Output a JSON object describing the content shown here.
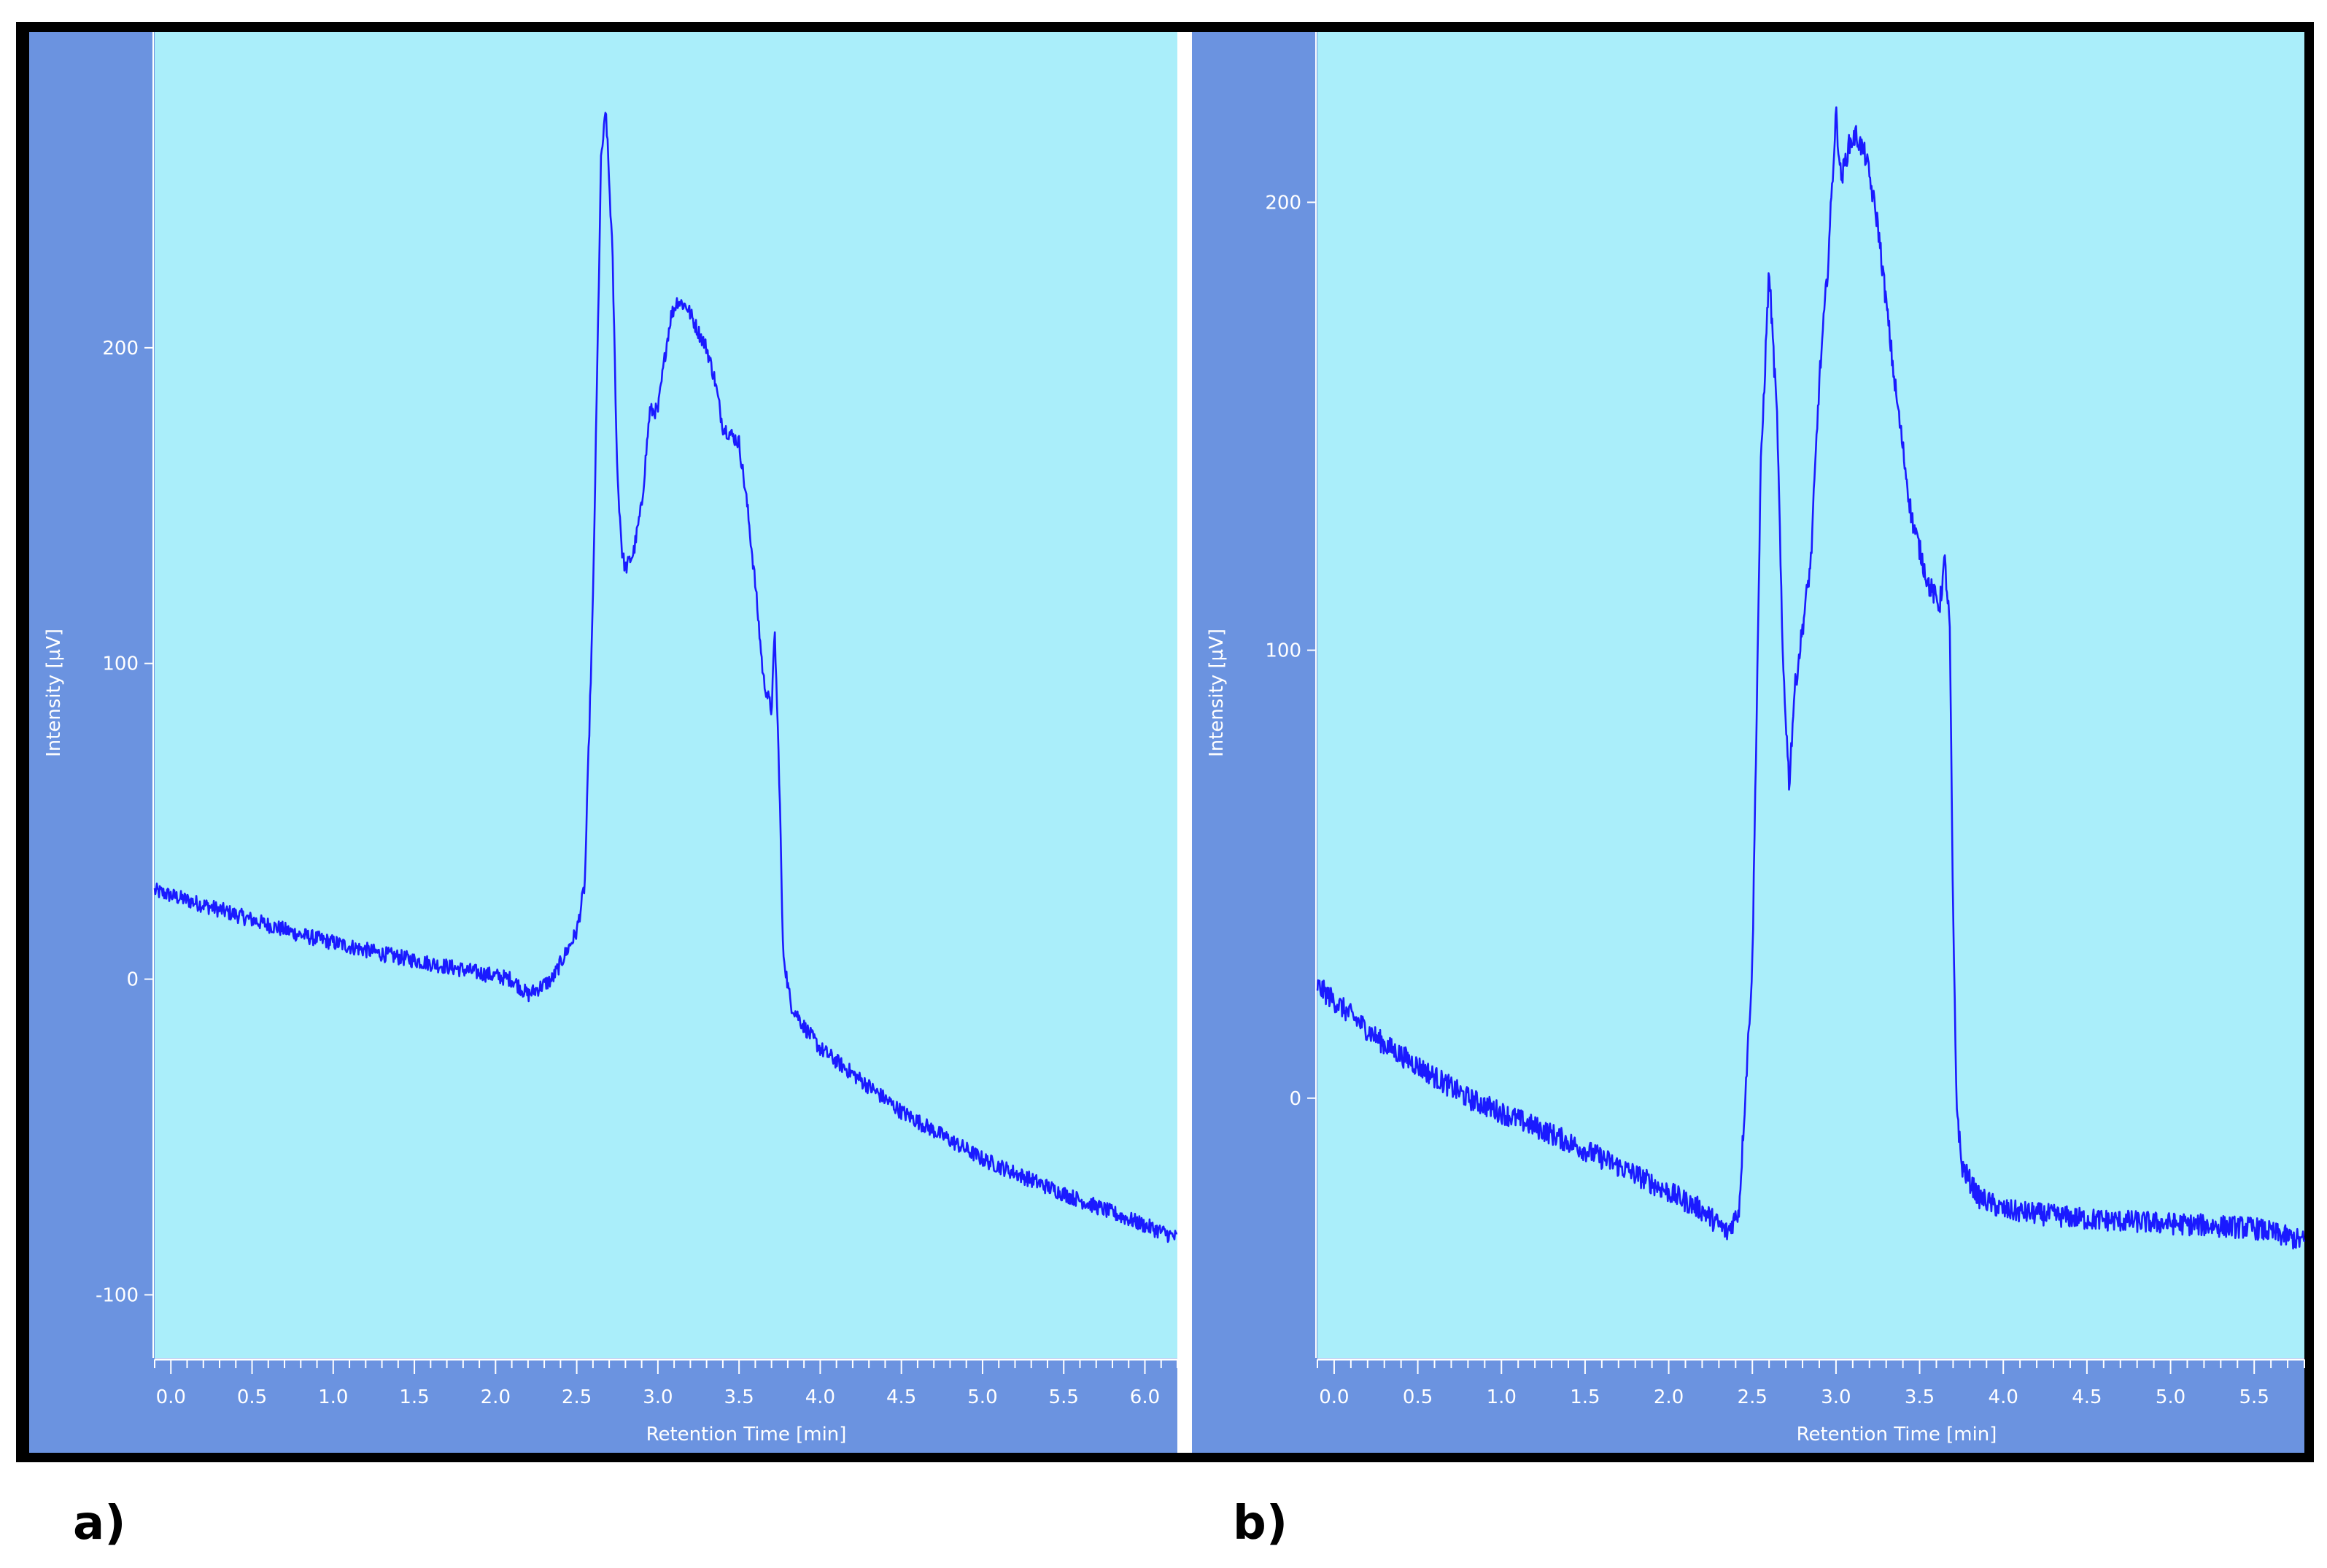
{
  "figure": {
    "panel_labels": [
      "a)",
      "b)"
    ]
  },
  "colors": {
    "frame": "#000000",
    "axis_band": "#6b93e0",
    "plot_background": "#aaeefa",
    "trace": "#1a1aff",
    "axis_text": "#ffffff"
  },
  "chart_data": [
    {
      "type": "line",
      "panel": "a)",
      "xlabel": "Retention Time [min]",
      "ylabel": "Intensity [µV]",
      "xlim": [
        -0.1,
        6.2
      ],
      "ylim": [
        -120,
        300
      ],
      "x_ticks": [
        0.0,
        0.5,
        1.0,
        1.5,
        2.0,
        2.5,
        3.0,
        3.5,
        4.0,
        4.5,
        5.0,
        5.5,
        6.0
      ],
      "x_tick_labels": [
        "0.0",
        "0.5",
        "1.0",
        "1.5",
        "2.0",
        "2.5",
        "3.0",
        "3.5",
        "4.0",
        "4.5",
        "5.0",
        "5.5",
        "6.0"
      ],
      "y_ticks": [
        -100,
        0,
        100,
        200
      ],
      "y_tick_labels": [
        "-100",
        "0",
        "100",
        "200"
      ],
      "grid": false,
      "series": [
        {
          "x": [
            -0.1,
            0.3,
            0.8,
            1.3,
            1.8,
            2.1,
            2.2,
            2.35,
            2.5,
            2.55,
            2.6,
            2.65,
            2.68,
            2.72,
            2.75,
            2.78,
            2.8,
            2.85,
            2.9,
            2.95,
            3.0,
            3.05,
            3.08,
            3.12,
            3.18,
            3.25,
            3.3,
            3.35,
            3.4,
            3.5,
            3.55,
            3.6,
            3.65,
            3.7,
            3.72,
            3.75,
            3.77,
            3.8,
            3.82,
            3.9,
            4.0,
            4.5,
            5.0,
            5.5,
            6.0,
            6.2
          ],
          "y": [
            28,
            22,
            14,
            8,
            3,
            0,
            -5,
            0,
            15,
            30,
            120,
            260,
            275,
            230,
            160,
            135,
            130,
            135,
            150,
            180,
            180,
            200,
            210,
            215,
            213,
            205,
            200,
            190,
            175,
            170,
            150,
            125,
            95,
            85,
            110,
            60,
            10,
            -2,
            -8,
            -15,
            -22,
            -42,
            -57,
            -68,
            -78,
            -82
          ]
        }
      ]
    },
    {
      "type": "line",
      "panel": "b)",
      "xlabel": "Retention Time [min]",
      "ylabel": "Intensity [µV]",
      "xlim": [
        -0.1,
        5.8
      ],
      "ylim": [
        -58,
        238
      ],
      "x_ticks": [
        0.0,
        0.5,
        1.0,
        1.5,
        2.0,
        2.5,
        3.0,
        3.5,
        4.0,
        4.5,
        5.0,
        5.5
      ],
      "x_tick_labels": [
        "0.0",
        "0.5",
        "1.0",
        "1.5",
        "2.0",
        "2.5",
        "3.0",
        "3.5",
        "4.0",
        "4.5",
        "5.0",
        "5.5"
      ],
      "y_ticks": [
        0,
        100,
        200
      ],
      "y_tick_labels": [
        "0",
        "100",
        "200"
      ],
      "grid": false,
      "series": [
        {
          "x": [
            -0.1,
            0.3,
            0.8,
            1.3,
            1.8,
            2.2,
            2.35,
            2.42,
            2.5,
            2.55,
            2.6,
            2.65,
            2.68,
            2.72,
            2.75,
            2.8,
            2.85,
            2.9,
            2.95,
            3.0,
            3.03,
            3.08,
            3.12,
            3.18,
            3.25,
            3.35,
            3.45,
            3.55,
            3.62,
            3.65,
            3.68,
            3.7,
            3.72,
            3.75,
            3.85,
            4.0,
            4.5,
            5.0,
            5.5,
            5.8
          ],
          "y": [
            25,
            12,
            0,
            -8,
            -17,
            -25,
            -30,
            -25,
            30,
            140,
            185,
            150,
            100,
            70,
            90,
            105,
            120,
            160,
            185,
            220,
            205,
            213,
            215,
            210,
            195,
            160,
            130,
            115,
            110,
            120,
            105,
            40,
            0,
            -15,
            -22,
            -25,
            -27,
            -28,
            -29,
            -32
          ]
        }
      ]
    }
  ]
}
